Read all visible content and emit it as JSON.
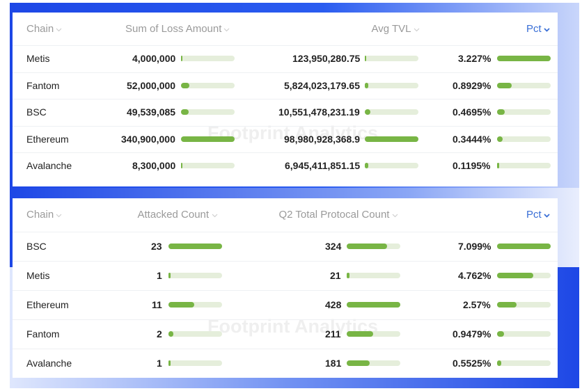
{
  "watermark": "Footprint Analytics",
  "tables": [
    {
      "columns": [
        "Chain",
        "Sum of Loss Amount",
        "Avg TVL",
        "Pct"
      ],
      "rows": [
        [
          "Metis",
          {
            "value": 4000000,
            "label": "4,000,000"
          },
          {
            "value": 123950280.75,
            "label": "123,950,280.75"
          },
          {
            "value": 3.227,
            "label": "3.227%"
          }
        ],
        [
          "Fantom",
          {
            "value": 52000000,
            "label": "52,000,000"
          },
          {
            "value": 5824023179.65,
            "label": "5,824,023,179.65"
          },
          {
            "value": 0.8929,
            "label": "0.8929%"
          }
        ],
        [
          "BSC",
          {
            "value": 49539085,
            "label": "49,539,085"
          },
          {
            "value": 10551478231.19,
            "label": "10,551,478,231.19"
          },
          {
            "value": 0.4695,
            "label": "0.4695%"
          }
        ],
        [
          "Ethereum",
          {
            "value": 340900000,
            "label": "340,900,000"
          },
          {
            "value": 98980928368.9,
            "label": "98,980,928,368.9"
          },
          {
            "value": 0.3444,
            "label": "0.3444%"
          }
        ],
        [
          "Avalanche",
          {
            "value": 8300000,
            "label": "8,300,000"
          },
          {
            "value": 6945411851.15,
            "label": "6,945,411,851.15"
          },
          {
            "value": 0.1195,
            "label": "0.1195%"
          }
        ]
      ]
    },
    {
      "columns": [
        "Chain",
        "Attacked Count",
        "Q2 Total Protocal Count",
        "Pct"
      ],
      "rows": [
        [
          "BSC",
          23,
          324,
          {
            "value": 7.099,
            "label": "7.099%"
          }
        ],
        [
          "Metis",
          1,
          21,
          {
            "value": 4.762,
            "label": "4.762%"
          }
        ],
        [
          "Ethereum",
          11,
          428,
          {
            "value": 2.57,
            "label": "2.57%"
          }
        ],
        [
          "Fantom",
          2,
          211,
          {
            "value": 0.9479,
            "label": "0.9479%"
          }
        ],
        [
          "Avalanche",
          1,
          181,
          {
            "value": 0.5525,
            "label": "0.5525%"
          }
        ]
      ]
    }
  ]
}
